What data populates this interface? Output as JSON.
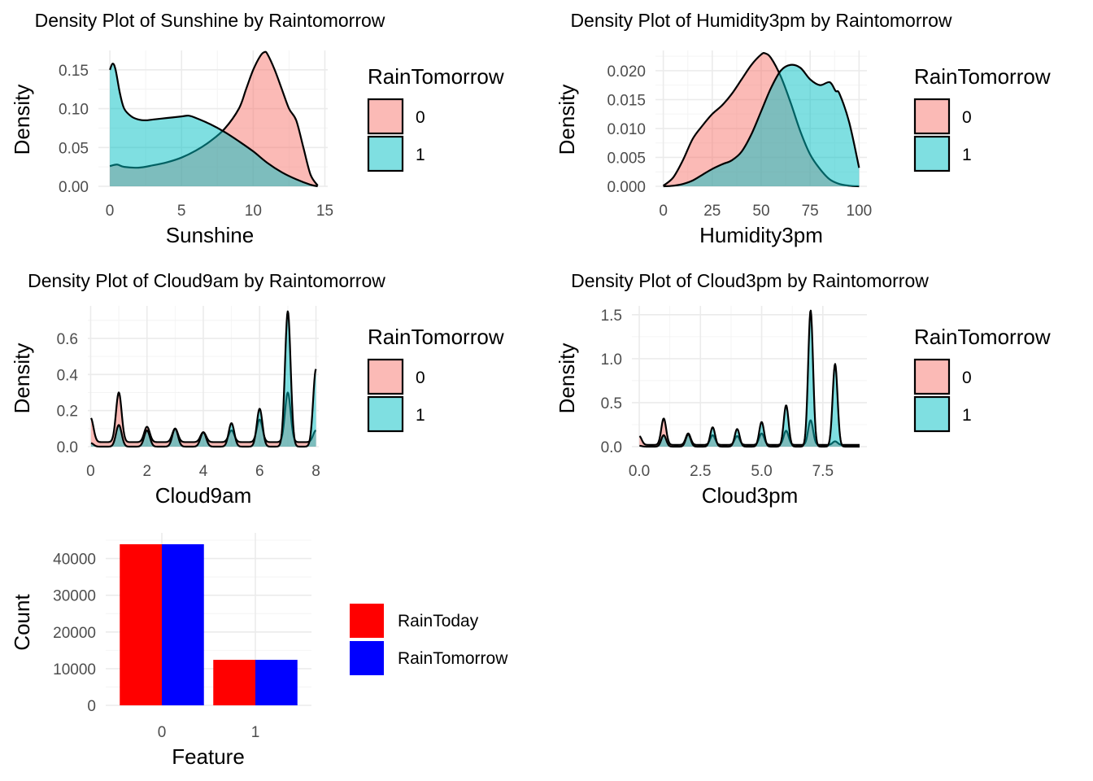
{
  "colors": {
    "pink": "#F8766D",
    "teal": "#00BFC4",
    "red": "#FF0000",
    "blue": "#0000FF",
    "grid_major": "#EBEBEB",
    "grid_minor": "#F4F4F4",
    "text": "#000000",
    "tick_text": "#4D4D4D"
  },
  "chart_data": [
    {
      "type": "area",
      "title": "Density Plot of  Sunshine by Raintomorrow",
      "xlabel": "Sunshine",
      "ylabel": "Density",
      "xlim": [
        -0.8,
        15.2
      ],
      "ylim": [
        0,
        0.175
      ],
      "xticks": [
        0,
        5,
        10,
        15
      ],
      "xtick_labels": [
        "0",
        "5",
        "10",
        "15"
      ],
      "yticks": [
        0.0,
        0.05,
        0.1,
        0.15
      ],
      "ytick_labels": [
        "0.00",
        "0.05",
        "0.10",
        "0.15"
      ],
      "legend": {
        "title": "RainTomorrow",
        "entries": [
          "0",
          "1"
        ],
        "position": "right"
      },
      "series": [
        {
          "name": "0",
          "color": "#F8766D",
          "x": [
            0,
            0.5,
            1,
            2,
            3,
            4,
            5,
            6,
            7,
            8,
            9,
            9.5,
            10,
            10.5,
            10.8,
            11,
            11.5,
            12,
            12.5,
            13,
            13.5,
            14,
            14.5
          ],
          "y": [
            0.026,
            0.028,
            0.025,
            0.024,
            0.027,
            0.031,
            0.037,
            0.046,
            0.058,
            0.074,
            0.1,
            0.125,
            0.15,
            0.168,
            0.173,
            0.17,
            0.15,
            0.125,
            0.1,
            0.085,
            0.05,
            0.015,
            0.001
          ]
        },
        {
          "name": "1",
          "color": "#00BFC4",
          "x": [
            0,
            0.2,
            0.4,
            0.7,
            1,
            1.5,
            2,
            2.5,
            3,
            4,
            5,
            5.5,
            6,
            7,
            8,
            9,
            10,
            11,
            12,
            13,
            14,
            14.5
          ],
          "y": [
            0.15,
            0.158,
            0.15,
            0.12,
            0.1,
            0.09,
            0.086,
            0.085,
            0.086,
            0.088,
            0.09,
            0.091,
            0.088,
            0.08,
            0.07,
            0.058,
            0.045,
            0.03,
            0.018,
            0.009,
            0.002,
            0.0
          ]
        }
      ]
    },
    {
      "type": "area",
      "title": "Density Plot of  Humidity3pm by Raintomorrow",
      "xlabel": "Humidity3pm",
      "ylabel": "Density",
      "xlim": [
        -4,
        104
      ],
      "ylim": [
        0,
        0.0235
      ],
      "xticks": [
        0,
        25,
        50,
        75,
        100
      ],
      "xtick_labels": [
        "0",
        "25",
        "50",
        "75",
        "100"
      ],
      "yticks": [
        0.0,
        0.005,
        0.01,
        0.015,
        0.02
      ],
      "ytick_labels": [
        "0.000",
        "0.005",
        "0.010",
        "0.015",
        "0.020"
      ],
      "legend": {
        "title": "RainTomorrow",
        "entries": [
          "0",
          "1"
        ],
        "position": "right"
      },
      "series": [
        {
          "name": "0",
          "color": "#F8766D",
          "x": [
            0,
            5,
            10,
            15,
            20,
            25,
            30,
            35,
            40,
            45,
            50,
            52,
            55,
            60,
            65,
            70,
            75,
            80,
            85,
            90,
            95,
            100
          ],
          "y": [
            0.0001,
            0.0015,
            0.0045,
            0.0082,
            0.0105,
            0.0125,
            0.014,
            0.016,
            0.0185,
            0.021,
            0.0228,
            0.023,
            0.0222,
            0.019,
            0.0145,
            0.0095,
            0.0055,
            0.003,
            0.0012,
            0.0004,
            0.0001,
            0.0
          ]
        },
        {
          "name": "1",
          "color": "#00BFC4",
          "x": [
            0,
            5,
            10,
            15,
            20,
            25,
            30,
            35,
            40,
            45,
            50,
            55,
            60,
            65,
            70,
            75,
            80,
            85,
            88,
            90,
            95,
            100
          ],
          "y": [
            0.0,
            0.0001,
            0.0004,
            0.001,
            0.002,
            0.003,
            0.0038,
            0.0045,
            0.006,
            0.009,
            0.013,
            0.017,
            0.02,
            0.021,
            0.0205,
            0.0185,
            0.0175,
            0.018,
            0.0165,
            0.016,
            0.011,
            0.0032
          ]
        }
      ]
    },
    {
      "type": "area",
      "title": "Density Plot of  Cloud9am by Raintomorrow",
      "xlabel": "Cloud9am",
      "ylabel": "Density",
      "xlim": [
        -0.1,
        8.1
      ],
      "ylim": [
        0,
        0.78
      ],
      "xticks": [
        0,
        2,
        4,
        6,
        8
      ],
      "xtick_labels": [
        "0",
        "2",
        "4",
        "6",
        "8"
      ],
      "yticks": [
        0.0,
        0.2,
        0.4,
        0.6
      ],
      "ytick_labels": [
        "0.0",
        "0.2",
        "0.4",
        "0.6"
      ],
      "legend": {
        "title": "RainTomorrow",
        "entries": [
          "0",
          "1"
        ],
        "position": "right"
      },
      "series": [
        {
          "name": "0",
          "color": "#F8766D",
          "peaks": [
            [
              0,
              0.16
            ],
            [
              1,
              0.3
            ],
            [
              2,
              0.11
            ],
            [
              3,
              0.1
            ],
            [
              4,
              0.08
            ],
            [
              5,
              0.09
            ],
            [
              6,
              0.15
            ],
            [
              7,
              0.3
            ],
            [
              8,
              0.09
            ]
          ],
          "baseline": 0.025,
          "x_end": 8
        },
        {
          "name": "1",
          "color": "#00BFC4",
          "peaks": [
            [
              0,
              0.02
            ],
            [
              1,
              0.12
            ],
            [
              2,
              0.09
            ],
            [
              3,
              0.1
            ],
            [
              4,
              0.08
            ],
            [
              5,
              0.13
            ],
            [
              6,
              0.21
            ],
            [
              7,
              0.75
            ],
            [
              8,
              0.43
            ]
          ],
          "baseline": 0.0,
          "x_end": 8
        }
      ]
    },
    {
      "type": "area",
      "title": "Density Plot of  Cloud3pm by Raintomorrow",
      "xlabel": "Cloud3pm",
      "ylabel": "Density",
      "xlim": [
        -0.3,
        9.3
      ],
      "ylim": [
        0,
        1.6
      ],
      "xticks": [
        0,
        2.5,
        5,
        7.5
      ],
      "xtick_labels": [
        "0.0",
        "2.5",
        "5.0",
        "7.5"
      ],
      "yticks": [
        0.0,
        0.5,
        1.0,
        1.5
      ],
      "ytick_labels": [
        "0.0",
        "0.5",
        "1.0",
        "1.5"
      ],
      "legend": {
        "title": "RainTomorrow",
        "entries": [
          "0",
          "1"
        ],
        "position": "right"
      },
      "series": [
        {
          "name": "0",
          "color": "#F8766D",
          "peaks": [
            [
              0,
              0.12
            ],
            [
              1,
              0.32
            ],
            [
              2,
              0.15
            ],
            [
              3,
              0.13
            ],
            [
              4,
              0.12
            ],
            [
              5,
              0.15
            ],
            [
              6,
              0.18
            ],
            [
              7,
              0.3
            ],
            [
              8,
              0.06
            ]
          ],
          "baseline": 0.02,
          "x_end": 9
        },
        {
          "name": "1",
          "color": "#00BFC4",
          "peaks": [
            [
              0,
              0.01
            ],
            [
              1,
              0.13
            ],
            [
              2,
              0.14
            ],
            [
              3,
              0.22
            ],
            [
              4,
              0.2
            ],
            [
              5,
              0.28
            ],
            [
              6,
              0.47
            ],
            [
              7,
              1.55
            ],
            [
              8,
              0.94
            ]
          ],
          "baseline": 0.0,
          "x_end": 9
        }
      ]
    },
    {
      "type": "bar",
      "xlabel": "Feature",
      "ylabel": "Count",
      "categories": [
        "0",
        "1"
      ],
      "ylim": [
        0,
        47000
      ],
      "yticks": [
        0,
        10000,
        20000,
        30000,
        40000
      ],
      "ytick_labels": [
        "0",
        "10000",
        "20000",
        "30000",
        "40000"
      ],
      "legend": {
        "title": "",
        "entries": [
          "RainToday",
          "RainTomorrow"
        ],
        "position": "right"
      },
      "series": [
        {
          "name": "RainToday",
          "color": "#FF0000",
          "values": [
            43900,
            12400
          ]
        },
        {
          "name": "RainTomorrow",
          "color": "#0000FF",
          "values": [
            43900,
            12400
          ]
        }
      ]
    }
  ]
}
